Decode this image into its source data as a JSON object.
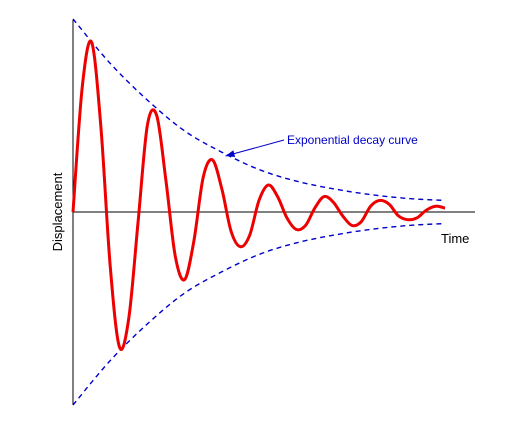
{
  "chart_data": {
    "type": "line",
    "title": "",
    "xlabel": "Time",
    "ylabel": "Displacement",
    "xlim": [
      0,
      10
    ],
    "ylim": [
      -1,
      1
    ],
    "grid": false,
    "legend": "none",
    "series": [
      {
        "role": "signal",
        "color": "#ee0000",
        "style": "solid",
        "x": [
          0,
          0.25,
          0.5,
          0.75,
          1.0,
          1.25,
          1.5,
          1.75,
          2.0,
          2.25,
          2.5,
          2.75,
          3.0,
          3.25,
          3.5,
          3.75,
          4.0,
          4.25,
          4.5,
          4.75,
          5.0,
          5.25,
          5.5,
          5.75,
          6.0,
          6.25,
          6.5,
          6.75,
          7.0,
          7.25,
          7.5,
          7.75,
          8.0,
          8.25,
          8.5,
          8.75,
          9.0,
          9.25,
          9.5,
          9.75,
          10.0
        ],
        "y": [
          0,
          0.65,
          0.88,
          0.44,
          -0.28,
          -0.7,
          -0.55,
          -0.05,
          0.45,
          0.5,
          0.16,
          -0.23,
          -0.35,
          -0.15,
          0.18,
          0.27,
          0.12,
          -0.1,
          -0.18,
          -0.12,
          0.06,
          0.14,
          0.08,
          -0.03,
          -0.09,
          -0.07,
          0.02,
          0.08,
          0.05,
          -0.02,
          -0.07,
          -0.05,
          0.03,
          0.06,
          0.04,
          -0.02,
          -0.04,
          -0.03,
          0.01,
          0.03,
          0.02
        ]
      },
      {
        "role": "upper-envelope",
        "color": "#0000cc",
        "style": "dashed",
        "x": [
          0,
          1,
          2,
          3,
          4,
          5,
          6,
          7,
          8,
          9,
          10
        ],
        "y": [
          1.0,
          0.77,
          0.58,
          0.42,
          0.31,
          0.22,
          0.16,
          0.12,
          0.09,
          0.07,
          0.06
        ]
      },
      {
        "role": "lower-envelope",
        "color": "#0000cc",
        "style": "dashed",
        "x": [
          0,
          1,
          2,
          3,
          4,
          5,
          6,
          7,
          8,
          9,
          10
        ],
        "y": [
          -1.0,
          -0.77,
          -0.58,
          -0.42,
          -0.31,
          -0.22,
          -0.16,
          -0.12,
          -0.09,
          -0.07,
          -0.06
        ]
      }
    ],
    "annotations": [
      {
        "text": "Exponential decay curve",
        "color": "#0000cc",
        "points_to": {
          "x": 4.1,
          "y": 0.29
        }
      }
    ]
  }
}
